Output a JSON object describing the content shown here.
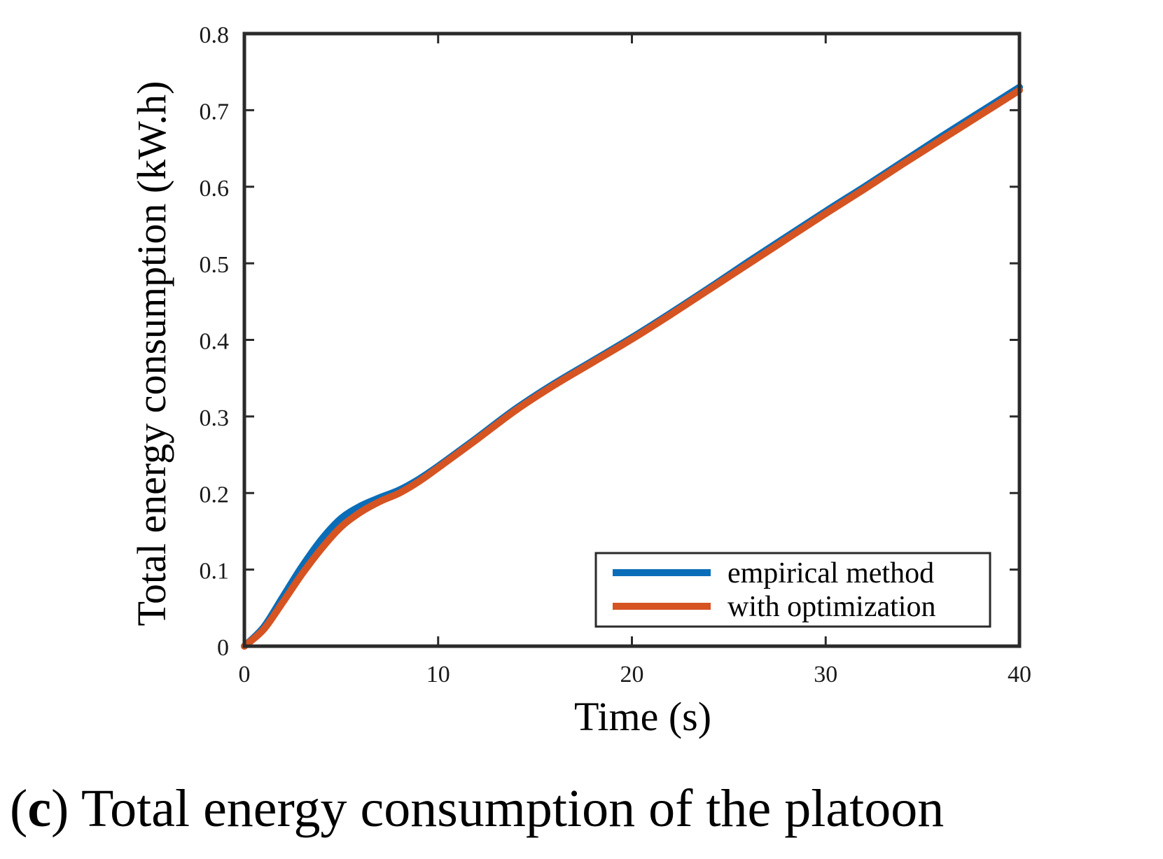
{
  "chart_data": {
    "type": "line",
    "title": "",
    "xlabel": "Time (s)",
    "ylabel": "Total energy consumption (kW.h)",
    "xlim": [
      0,
      40
    ],
    "ylim": [
      0,
      0.8
    ],
    "xticks": [
      0,
      10,
      20,
      30,
      40
    ],
    "xtick_labels": [
      "0",
      "10",
      "20",
      "30",
      "40"
    ],
    "yticks": [
      0,
      0.1,
      0.2,
      0.3,
      0.4,
      0.5,
      0.6,
      0.7,
      0.8
    ],
    "ytick_labels": [
      "0",
      "0.1",
      "0.2",
      "0.3",
      "0.4",
      "0.5",
      "0.6",
      "0.7",
      "0.8"
    ],
    "grid": false,
    "legend_position": "bottom-right",
    "caption": {
      "label": "c",
      "text": "Total energy consumption of the platoon"
    },
    "series": [
      {
        "name": "empirical method",
        "color": "#0a6db8",
        "x": [
          0,
          1,
          2,
          3,
          4,
          5,
          6,
          7,
          8,
          9,
          10,
          12,
          14,
          16,
          18,
          20,
          22,
          24,
          26,
          28,
          30,
          32,
          34,
          36,
          38,
          40
        ],
        "y": [
          0,
          0.025,
          0.065,
          0.105,
          0.14,
          0.167,
          0.183,
          0.194,
          0.204,
          0.218,
          0.235,
          0.272,
          0.31,
          0.343,
          0.373,
          0.403,
          0.435,
          0.468,
          0.502,
          0.535,
          0.568,
          0.6,
          0.633,
          0.666,
          0.698,
          0.73
        ]
      },
      {
        "name": "with optimization",
        "color": "#d55422",
        "x": [
          0,
          1,
          2,
          3,
          4,
          5,
          6,
          7,
          8,
          9,
          10,
          12,
          14,
          16,
          18,
          20,
          22,
          24,
          26,
          28,
          30,
          32,
          34,
          36,
          38,
          40
        ],
        "y": [
          0,
          0.022,
          0.058,
          0.095,
          0.128,
          0.156,
          0.175,
          0.189,
          0.2,
          0.215,
          0.233,
          0.27,
          0.308,
          0.341,
          0.371,
          0.401,
          0.433,
          0.466,
          0.499,
          0.532,
          0.565,
          0.597,
          0.63,
          0.662,
          0.694,
          0.726
        ]
      }
    ]
  }
}
